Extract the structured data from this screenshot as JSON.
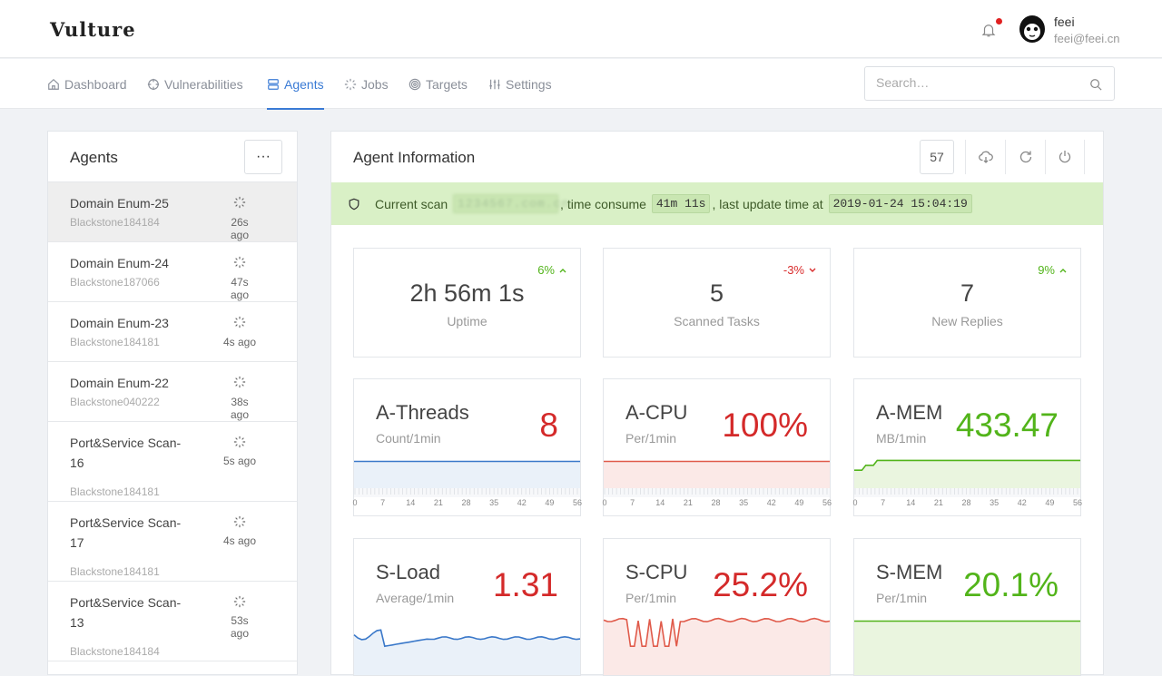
{
  "header": {
    "logo": "Vulture",
    "user": {
      "name": "feei",
      "email": "feei@feei.cn"
    }
  },
  "nav": {
    "items": [
      {
        "label": "Dashboard",
        "icon": "home-icon"
      },
      {
        "label": "Vulnerabilities",
        "icon": "crosshair-icon"
      },
      {
        "label": "Agents",
        "icon": "server-icon",
        "active": true
      },
      {
        "label": "Jobs",
        "icon": "spinner-icon"
      },
      {
        "label": "Targets",
        "icon": "target-icon"
      },
      {
        "label": "Settings",
        "icon": "sliders-icon"
      }
    ],
    "search_placeholder": "Search…"
  },
  "agents": {
    "title": "Agents",
    "more_label": "···",
    "items": [
      {
        "name": "Domain Enum-25",
        "host": "Blackstone184184",
        "time": "26s ago",
        "selected": true
      },
      {
        "name": "Domain Enum-24",
        "host": "Blackstone187066",
        "time": "47s ago"
      },
      {
        "name": "Domain Enum-23",
        "host": "Blackstone184181",
        "time": "4s ago"
      },
      {
        "name": "Domain Enum-22",
        "host": "Blackstone040222",
        "time": "38s ago"
      },
      {
        "name": "Port&Service Scan-16",
        "host": "Blackstone184181",
        "time": "5s ago"
      },
      {
        "name": "Port&Service Scan-17",
        "host": "Blackstone184181",
        "time": "4s ago"
      },
      {
        "name": "Port&Service Scan-13",
        "host": "Blackstone184184",
        "time": "53s ago"
      }
    ]
  },
  "info": {
    "title": "Agent Information",
    "count": "57",
    "scan": {
      "prefix": "Current scan",
      "target": "1234567.com.cn",
      "mid": ", time consume",
      "duration": "41m 11s",
      "mid2": ", last update time at",
      "updated": "2019-01-24 15:04:19"
    },
    "stats": [
      {
        "value": "2h 56m 1s",
        "label": "Uptime",
        "trend": "6%",
        "direction": "up"
      },
      {
        "value": "5",
        "label": "Scanned Tasks",
        "trend": "-3%",
        "direction": "down"
      },
      {
        "value": "7",
        "label": "New Replies",
        "trend": "9%",
        "direction": "up"
      }
    ],
    "metrics": [
      {
        "title": "A-Threads",
        "sub": "Count/1min",
        "value": "8",
        "color": "red",
        "chart_color": "#3a78c9",
        "fill": "#eaf1f9",
        "series": "flat_high",
        "axis": true
      },
      {
        "title": "A-CPU",
        "sub": "Per/1min",
        "value": "100%",
        "color": "red",
        "chart_color": "#e05a4a",
        "fill": "#fbe9e7",
        "series": "flat_high",
        "axis": true
      },
      {
        "title": "A-MEM",
        "sub": "MB/1min",
        "value": "433.47",
        "color": "green",
        "chart_color": "#52b41a",
        "fill": "#eaf5df",
        "series": "mem",
        "axis": true
      },
      {
        "title": "S-Load",
        "sub": "Average/1min",
        "value": "1.31",
        "color": "red",
        "chart_color": "#3a78c9",
        "fill": "#eaf1f9",
        "series": "load",
        "axis": false
      },
      {
        "title": "S-CPU",
        "sub": "Per/1min",
        "value": "25.2%",
        "color": "red",
        "chart_color": "#e05a4a",
        "fill": "#fbe9e7",
        "series": "scpu",
        "axis": false
      },
      {
        "title": "S-MEM",
        "sub": "Per/1min",
        "value": "20.1%",
        "color": "green",
        "chart_color": "#52b41a",
        "fill": "#eaf5df",
        "series": "flat_high",
        "axis": false
      }
    ],
    "axis_ticks": [
      "0",
      "7",
      "14",
      "21",
      "28",
      "35",
      "42",
      "49",
      "56"
    ]
  }
}
